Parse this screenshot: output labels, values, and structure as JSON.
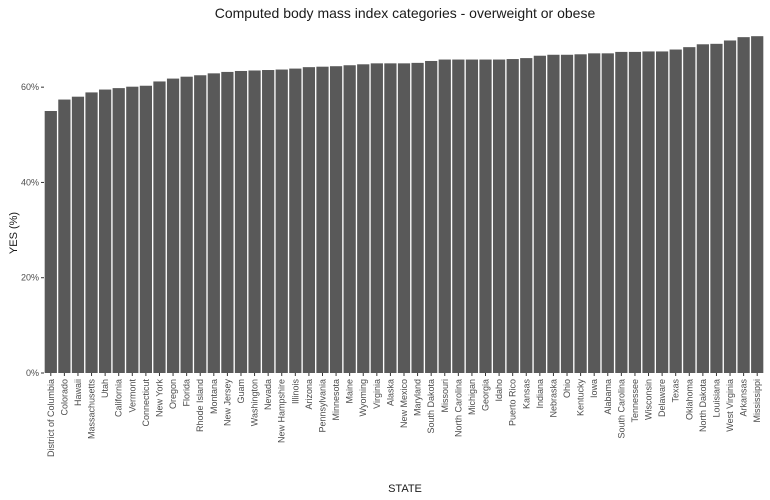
{
  "chart_data": {
    "type": "bar",
    "title": "Computed body mass index categories - overweight or obese",
    "xlabel": "STATE",
    "ylabel": "YES (%)",
    "ylim": [
      0,
      72
    ],
    "yticks": [
      0,
      20,
      40,
      60
    ],
    "ytick_labels": [
      "0%",
      "20%",
      "40%",
      "60%"
    ],
    "grid": false,
    "categories": [
      "District of Columbia",
      "Colorado",
      "Hawaii",
      "Massachusetts",
      "Utah",
      "California",
      "Vermont",
      "Connecticut",
      "New York",
      "Oregon",
      "Florida",
      "Rhode Island",
      "Montana",
      "New Jersey",
      "Guam",
      "Washington",
      "Nevada",
      "New Hampshire",
      "Illinois",
      "Arizona",
      "Pennsylvania",
      "Minnesota",
      "Maine",
      "Wyoming",
      "Virginia",
      "Alaska",
      "New Mexico",
      "Maryland",
      "South Dakota",
      "Missouri",
      "North Carolina",
      "Michigan",
      "Georgia",
      "Idaho",
      "Puerto Rico",
      "Kansas",
      "Indiana",
      "Nebraska",
      "Ohio",
      "Kentucky",
      "Iowa",
      "Alabama",
      "South Carolina",
      "Tennessee",
      "Wisconsin",
      "Delaware",
      "Texas",
      "Oklahoma",
      "North Dakota",
      "Louisiana",
      "West Virginia",
      "Arkansas",
      "Mississippi"
    ],
    "values": [
      55.0,
      57.4,
      58.0,
      58.9,
      59.5,
      59.8,
      60.1,
      60.3,
      61.2,
      61.8,
      62.2,
      62.5,
      62.9,
      63.2,
      63.4,
      63.5,
      63.6,
      63.7,
      63.9,
      64.2,
      64.3,
      64.4,
      64.6,
      64.8,
      65.0,
      65.0,
      65.0,
      65.1,
      65.5,
      65.8,
      65.8,
      65.8,
      65.8,
      65.8,
      65.9,
      66.1,
      66.6,
      66.8,
      66.8,
      66.9,
      67.1,
      67.1,
      67.4,
      67.4,
      67.5,
      67.5,
      67.9,
      68.4,
      69.0,
      69.1,
      69.8,
      70.5,
      70.7
    ]
  }
}
